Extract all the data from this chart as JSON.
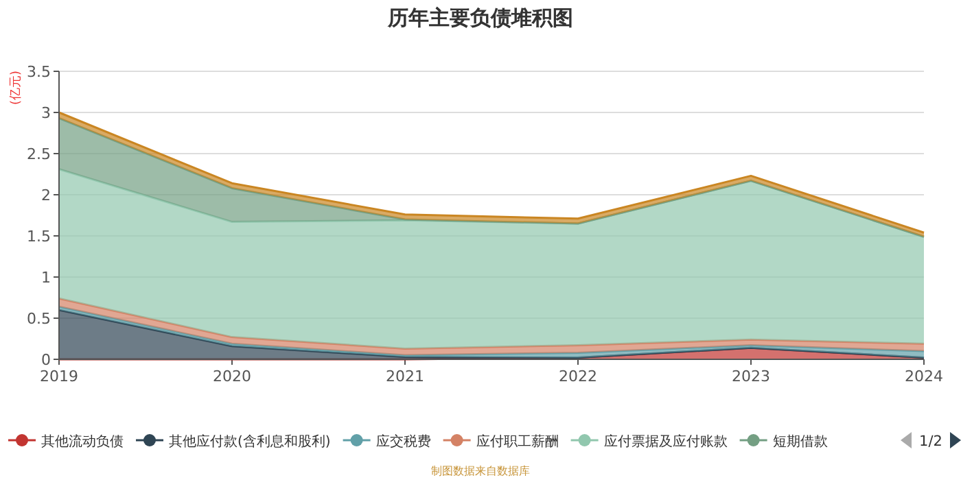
{
  "chart_data": {
    "type": "area",
    "stacked": true,
    "title": "历年主要负债堆积图",
    "ylabel": "(亿元)",
    "x": [
      2019,
      2020,
      2021,
      2022,
      2023,
      2024
    ],
    "xlim": [
      2019,
      2024
    ],
    "xticks": [
      2019,
      2020,
      2021,
      2022,
      2023,
      2024
    ],
    "ylim": [
      0,
      3.5
    ],
    "yticks": [
      0,
      0.5,
      1,
      1.5,
      2,
      2.5,
      3,
      3.5
    ],
    "grid": "y",
    "legend": "bottom",
    "marker": "none",
    "series": [
      {
        "name": "其他流动负债",
        "color": "#c23531",
        "values": [
          0,
          0,
          0,
          0.02,
          0.14,
          0.02
        ]
      },
      {
        "name": "其他应付款(含利息和股利)",
        "color": "#2f4554",
        "values": [
          0.6,
          0.16,
          0.03,
          0,
          0,
          0
        ]
      },
      {
        "name": "应交税费",
        "color": "#61a0a8",
        "values": [
          0.04,
          0.03,
          0.02,
          0.06,
          0.03,
          0.08
        ]
      },
      {
        "name": "应付职工薪酬",
        "color": "#d48265",
        "values": [
          0.1,
          0.08,
          0.08,
          0.09,
          0.07,
          0.09
        ]
      },
      {
        "name": "应付票据及应付账款",
        "color": "#91c7ae",
        "values": [
          1.57,
          1.4,
          1.56,
          1.48,
          1.93,
          1.3
        ]
      },
      {
        "name": "短期借款",
        "color": "#749f83",
        "values": [
          0.62,
          0.41,
          0.01,
          0,
          0,
          0
        ]
      },
      {
        "color": "#ca8622",
        "values": [
          0.07,
          0.06,
          0.06,
          0.06,
          0.06,
          0.05
        ]
      }
    ],
    "annotations": [
      "1/2",
      "制图数据来自数据库"
    ]
  }
}
